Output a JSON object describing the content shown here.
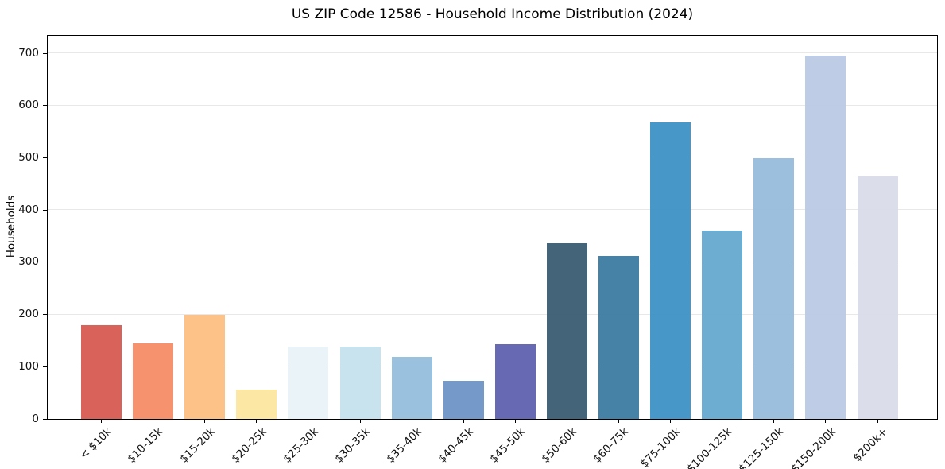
{
  "chart_data": {
    "type": "bar",
    "title": "US ZIP Code 12586 - Household Income Distribution (2024)",
    "xlabel": "",
    "ylabel": "Households",
    "categories": [
      "< $10k",
      "$10-15k",
      "$15-20k",
      "$20-25k",
      "$25-30k",
      "$30-35k",
      "$35-40k",
      "$40-45k",
      "$45-50k",
      "$50-60k",
      "$60-75k",
      "$75-100k",
      "$100-125k",
      "$125-150k",
      "$150-200k",
      "$200k+"
    ],
    "values": [
      179,
      144,
      200,
      57,
      139,
      138,
      119,
      73,
      143,
      337,
      312,
      568,
      360,
      499,
      696,
      464
    ],
    "bar_colors": [
      "#d6564f",
      "#f58a62",
      "#fcbd7e",
      "#fde59d",
      "#e8f2f6",
      "#c4e1ed",
      "#92bcdb",
      "#6b91c4",
      "#5b5ead",
      "#36596f",
      "#38789f",
      "#398fc4",
      "#62a7cd",
      "#94badb",
      "#b9c9e3",
      "#d9dae8"
    ],
    "yticks": [
      0,
      100,
      200,
      300,
      400,
      500,
      600,
      700
    ],
    "ylim": [
      0,
      732
    ],
    "grid": "horizontal",
    "gridline_color": "#e8e8e8",
    "x_tick_rotation": 45,
    "legend": "none",
    "background": "#ffffff"
  }
}
